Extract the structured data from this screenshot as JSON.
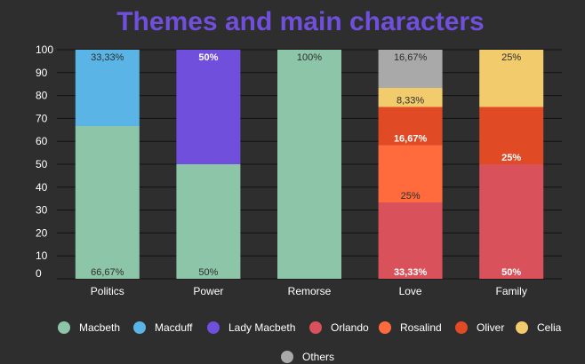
{
  "chart_data": {
    "type": "bar",
    "stacked": true,
    "title": "Themes and main characters",
    "xlabel": "",
    "ylabel": "",
    "ylim": [
      0,
      100
    ],
    "yticks": [
      0,
      10,
      20,
      30,
      40,
      50,
      60,
      70,
      80,
      90,
      100
    ],
    "grid": true,
    "legend_position": "bottom",
    "categories": [
      "Politics",
      "Power",
      "Remorse",
      "Love",
      "Family"
    ],
    "series": [
      {
        "name": "Macbeth",
        "color": "#8cc5a8",
        "values": [
          66.67,
          50,
          100,
          0,
          0
        ],
        "labels": [
          "66,67%",
          "50%",
          "100%",
          "",
          ""
        ],
        "label_color": "#2e2e2e",
        "label_bold": false
      },
      {
        "name": "Macduff",
        "color": "#5ab4e5",
        "values": [
          33.33,
          0,
          0,
          0,
          0
        ],
        "labels": [
          "33,33%",
          "",
          "",
          "",
          ""
        ],
        "label_color": "#2e2e2e",
        "label_bold": false
      },
      {
        "name": "Lady Macbeth",
        "color": "#6f4fdc",
        "values": [
          0,
          50,
          0,
          0,
          0
        ],
        "labels": [
          "",
          "50%",
          "",
          "",
          ""
        ],
        "label_color": "#ffffff",
        "label_bold": true
      },
      {
        "name": "Orlando",
        "color": "#d9515a",
        "values": [
          0,
          0,
          0,
          33.33,
          50
        ],
        "labels": [
          "",
          "",
          "",
          "33,33%",
          "50%"
        ],
        "label_color": "#ffffff",
        "label_bold": true
      },
      {
        "name": "Rosalind",
        "color": "#ff6b3d",
        "values": [
          0,
          0,
          0,
          25,
          0
        ],
        "labels": [
          "",
          "",
          "",
          "25%",
          ""
        ],
        "label_color": "#2e2e2e",
        "label_bold": false
      },
      {
        "name": "Oliver",
        "color": "#e04a24",
        "values": [
          0,
          0,
          0,
          16.67,
          25
        ],
        "labels": [
          "",
          "",
          "",
          "16,67%",
          "25%"
        ],
        "label_color": "#ffffff",
        "label_bold": true
      },
      {
        "name": "Celia",
        "color": "#f1cb6c",
        "values": [
          0,
          0,
          0,
          8.33,
          25
        ],
        "labels": [
          "",
          "",
          "",
          "8,33%",
          "25%"
        ],
        "label_color": "#2e2e2e",
        "label_bold": false
      },
      {
        "name": "Others",
        "color": "#a9a9a9",
        "values": [
          0,
          0,
          0,
          16.67,
          0
        ],
        "labels": [
          "",
          "",
          "",
          "16,67%",
          ""
        ],
        "label_color": "#2e2e2e",
        "label_bold": false
      }
    ],
    "colors": {
      "background": "#2e2e2e",
      "title": "#6f4fdc",
      "grid": "#111111",
      "axis_text": "#ffffff"
    }
  }
}
